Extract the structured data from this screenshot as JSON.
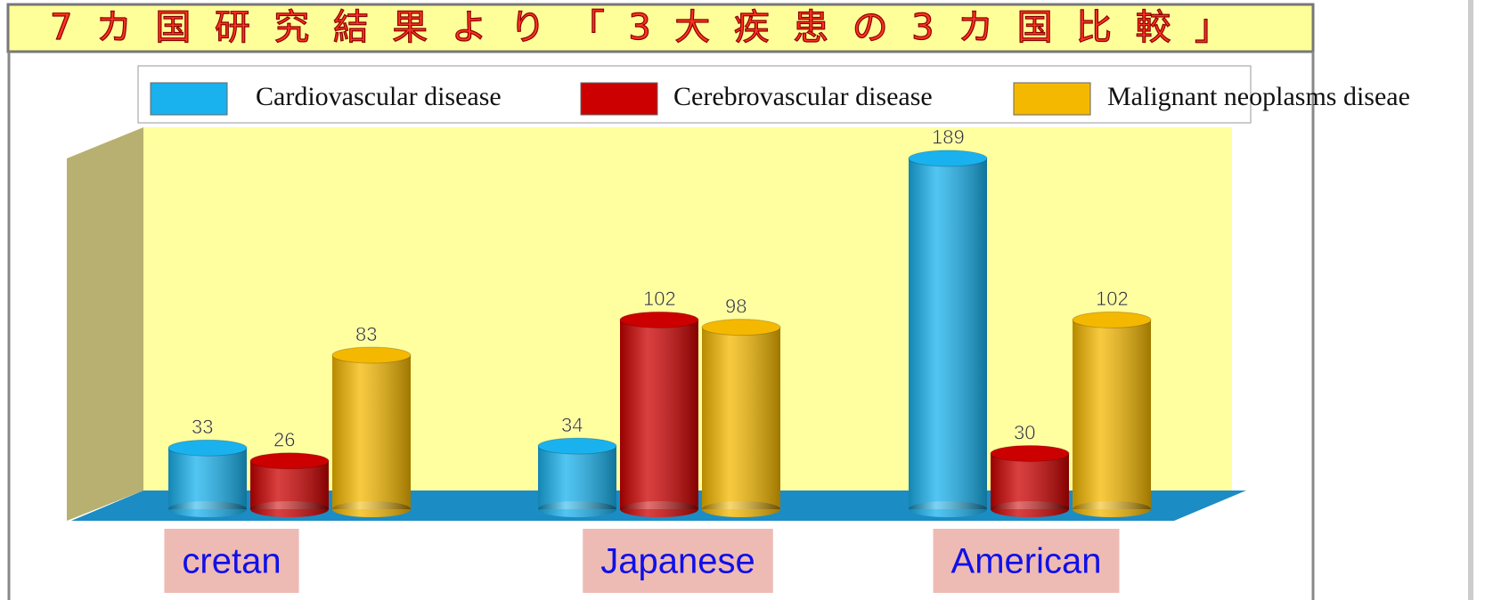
{
  "chart_data": {
    "type": "bar3d",
    "title": "7カ国研究結果より「3大疾患の3カ国比較」",
    "categories": [
      "cretan",
      "Japanese",
      "American"
    ],
    "series": [
      {
        "name": "Cardiovascular disease",
        "color": "#19b2ee",
        "values": [
          33,
          34,
          189
        ]
      },
      {
        "name": "Cerebrovascular disease",
        "color": "#cc0000",
        "values": [
          26,
          102,
          30
        ]
      },
      {
        "name": "Malignant neoplasms diseae",
        "color": "#f5b800",
        "values": [
          83,
          98,
          102
        ]
      }
    ],
    "ylim": [
      0,
      200
    ]
  }
}
